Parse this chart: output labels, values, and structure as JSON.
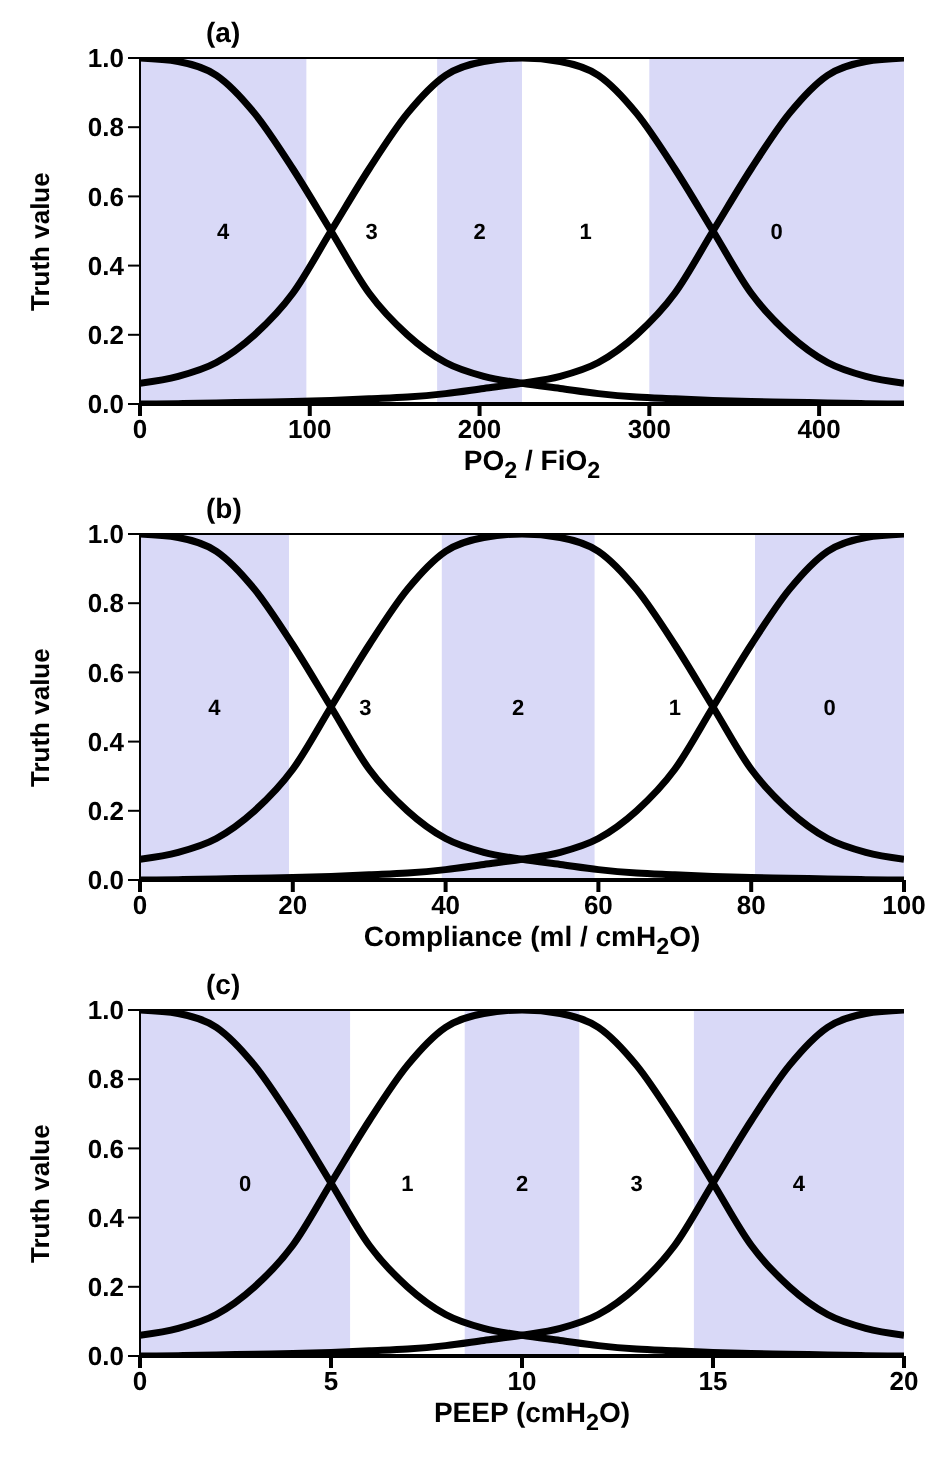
{
  "chart_data": [
    {
      "type": "line",
      "title": "(a)",
      "xlabel": "PO$_{2}$ / FiO$_{2}$",
      "ylabel": "Truth value",
      "xlim": [
        0,
        450
      ],
      "xticks": [
        0,
        100,
        200,
        300,
        400
      ],
      "ylim": [
        0,
        1
      ],
      "yticks": [
        {
          "value": 0,
          "label": "0.0"
        },
        {
          "value": 0.2,
          "label": "0.2"
        },
        {
          "value": 0.4,
          "label": "0.4"
        },
        {
          "value": 0.6,
          "label": "0.6"
        },
        {
          "value": 0.8,
          "label": "0.8"
        },
        {
          "value": 1,
          "label": "1.0"
        }
      ],
      "marker": "none",
      "line_style": "solid",
      "series": [
        {
          "color": "#000000",
          "x": [
            0,
            22.5,
            45,
            67.5,
            90,
            112.5,
            135,
            157.5,
            180,
            202.5,
            225,
            247.5,
            270,
            292.5,
            315,
            337.5,
            360,
            382.5,
            405,
            427.5,
            450
          ],
          "values": [
            1.0,
            0.99,
            0.95,
            0.84,
            0.68,
            0.5,
            0.32,
            0.2,
            0.12,
            0.08,
            0.06,
            0.045,
            0.03,
            0.02,
            0.015,
            0.01,
            0.007,
            0.005,
            0.003,
            0.001,
            0.0
          ]
        },
        {
          "color": "#000000",
          "x": [
            0,
            22.5,
            45,
            67.5,
            90,
            112.5,
            135,
            157.5,
            180,
            202.5,
            225,
            247.5,
            270,
            292.5,
            315,
            337.5,
            360,
            382.5,
            405,
            427.5,
            450
          ],
          "values": [
            0.06,
            0.08,
            0.12,
            0.2,
            0.32,
            0.5,
            0.68,
            0.84,
            0.95,
            0.99,
            1.0,
            0.99,
            0.95,
            0.84,
            0.68,
            0.5,
            0.32,
            0.2,
            0.12,
            0.08,
            0.06
          ]
        },
        {
          "color": "#000000",
          "x": [
            0,
            22.5,
            45,
            67.5,
            90,
            112.5,
            135,
            157.5,
            180,
            202.5,
            225,
            247.5,
            270,
            292.5,
            315,
            337.5,
            360,
            382.5,
            405,
            427.5,
            450
          ],
          "values": [
            0.0,
            0.001,
            0.003,
            0.005,
            0.007,
            0.01,
            0.015,
            0.02,
            0.03,
            0.045,
            0.06,
            0.08,
            0.12,
            0.2,
            0.32,
            0.5,
            0.68,
            0.84,
            0.95,
            0.99,
            1.0
          ]
        }
      ],
      "bands": [
        {
          "axis": "x",
          "from": 0,
          "to": 98,
          "color": "#d9d9f7",
          "label": "4"
        },
        {
          "axis": "x",
          "from": 175,
          "to": 225,
          "color": "#d9d9f7",
          "label": "2"
        },
        {
          "axis": "x",
          "from": 300,
          "to": 450,
          "color": "#d9d9f7",
          "label": "0"
        }
      ],
      "annotations": [
        "3",
        "1"
      ]
    },
    {
      "type": "line",
      "title": "(b)",
      "xlabel": "Compliance (ml / cmH$_{2}$O)",
      "ylabel": "Truth value",
      "xlim": [
        0,
        100
      ],
      "xticks": [
        0,
        20,
        40,
        60,
        80,
        100
      ],
      "ylim": [
        0,
        1
      ],
      "yticks": [
        {
          "value": 0,
          "label": "0.0"
        },
        {
          "value": 0.2,
          "label": "0.2"
        },
        {
          "value": 0.4,
          "label": "0.4"
        },
        {
          "value": 0.6,
          "label": "0.6"
        },
        {
          "value": 0.8,
          "label": "0.8"
        },
        {
          "value": 1,
          "label": "1.0"
        }
      ],
      "marker": "none",
      "line_style": "solid",
      "series": [
        {
          "color": "#000000",
          "x": [
            0,
            5,
            10,
            15,
            20,
            25,
            30,
            35,
            40,
            45,
            50,
            55,
            60,
            65,
            70,
            75,
            80,
            85,
            90,
            95,
            100
          ],
          "values": [
            1.0,
            0.99,
            0.95,
            0.84,
            0.68,
            0.5,
            0.32,
            0.2,
            0.12,
            0.08,
            0.06,
            0.045,
            0.03,
            0.02,
            0.015,
            0.01,
            0.007,
            0.005,
            0.003,
            0.001,
            0.0
          ]
        },
        {
          "color": "#000000",
          "x": [
            0,
            5,
            10,
            15,
            20,
            25,
            30,
            35,
            40,
            45,
            50,
            55,
            60,
            65,
            70,
            75,
            80,
            85,
            90,
            95,
            100
          ],
          "values": [
            0.06,
            0.08,
            0.12,
            0.2,
            0.32,
            0.5,
            0.68,
            0.84,
            0.95,
            0.99,
            1.0,
            0.99,
            0.95,
            0.84,
            0.68,
            0.5,
            0.32,
            0.2,
            0.12,
            0.08,
            0.06
          ]
        },
        {
          "color": "#000000",
          "x": [
            0,
            5,
            10,
            15,
            20,
            25,
            30,
            35,
            40,
            45,
            50,
            55,
            60,
            65,
            70,
            75,
            80,
            85,
            90,
            95,
            100
          ],
          "values": [
            0.0,
            0.001,
            0.003,
            0.005,
            0.007,
            0.01,
            0.015,
            0.02,
            0.03,
            0.045,
            0.06,
            0.08,
            0.12,
            0.2,
            0.32,
            0.5,
            0.68,
            0.84,
            0.95,
            0.99,
            1.0
          ]
        }
      ],
      "bands": [
        {
          "axis": "x",
          "from": 0,
          "to": 19.5,
          "color": "#d9d9f7",
          "label": "4"
        },
        {
          "axis": "x",
          "from": 39.5,
          "to": 59.5,
          "color": "#d9d9f7",
          "label": "2"
        },
        {
          "axis": "x",
          "from": 80.5,
          "to": 100,
          "color": "#d9d9f7",
          "label": "0"
        }
      ],
      "annotations": [
        "3",
        "1"
      ]
    },
    {
      "type": "line",
      "title": "(c)",
      "xlabel": "PEEP (cmH$_{2}$O)",
      "ylabel": "Truth value",
      "xlim": [
        0,
        20
      ],
      "xticks": [
        0,
        5,
        10,
        15,
        20
      ],
      "ylim": [
        0,
        1
      ],
      "yticks": [
        {
          "value": 0,
          "label": "0.0"
        },
        {
          "value": 0.2,
          "label": "0.2"
        },
        {
          "value": 0.4,
          "label": "0.4"
        },
        {
          "value": 0.6,
          "label": "0.6"
        },
        {
          "value": 0.8,
          "label": "0.8"
        },
        {
          "value": 1,
          "label": "1.0"
        }
      ],
      "marker": "none",
      "line_style": "solid",
      "series": [
        {
          "color": "#000000",
          "x": [
            0,
            1,
            2,
            3,
            4,
            5,
            6,
            7,
            8,
            9,
            10,
            11,
            12,
            13,
            14,
            15,
            16,
            17,
            18,
            19,
            20
          ],
          "values": [
            1.0,
            0.99,
            0.95,
            0.84,
            0.68,
            0.5,
            0.32,
            0.2,
            0.12,
            0.08,
            0.06,
            0.045,
            0.03,
            0.02,
            0.015,
            0.01,
            0.007,
            0.005,
            0.003,
            0.001,
            0.0
          ]
        },
        {
          "color": "#000000",
          "x": [
            0,
            1,
            2,
            3,
            4,
            5,
            6,
            7,
            8,
            9,
            10,
            11,
            12,
            13,
            14,
            15,
            16,
            17,
            18,
            19,
            20
          ],
          "values": [
            0.06,
            0.08,
            0.12,
            0.2,
            0.32,
            0.5,
            0.68,
            0.84,
            0.95,
            0.99,
            1.0,
            0.99,
            0.95,
            0.84,
            0.68,
            0.5,
            0.32,
            0.2,
            0.12,
            0.08,
            0.06
          ]
        },
        {
          "color": "#000000",
          "x": [
            0,
            1,
            2,
            3,
            4,
            5,
            6,
            7,
            8,
            9,
            10,
            11,
            12,
            13,
            14,
            15,
            16,
            17,
            18,
            19,
            20
          ],
          "values": [
            0.0,
            0.001,
            0.003,
            0.005,
            0.007,
            0.01,
            0.015,
            0.02,
            0.03,
            0.045,
            0.06,
            0.08,
            0.12,
            0.2,
            0.32,
            0.5,
            0.68,
            0.84,
            0.95,
            0.99,
            1.0
          ]
        }
      ],
      "bands": [
        {
          "axis": "x",
          "from": 0,
          "to": 5.5,
          "color": "#d9d9f7",
          "label": "0"
        },
        {
          "axis": "x",
          "from": 8.5,
          "to": 11.5,
          "color": "#d9d9f7",
          "label": "2"
        },
        {
          "axis": "x",
          "from": 14.5,
          "to": 20,
          "color": "#d9d9f7",
          "label": "4"
        }
      ],
      "annotations": [
        "1",
        "3"
      ]
    }
  ]
}
